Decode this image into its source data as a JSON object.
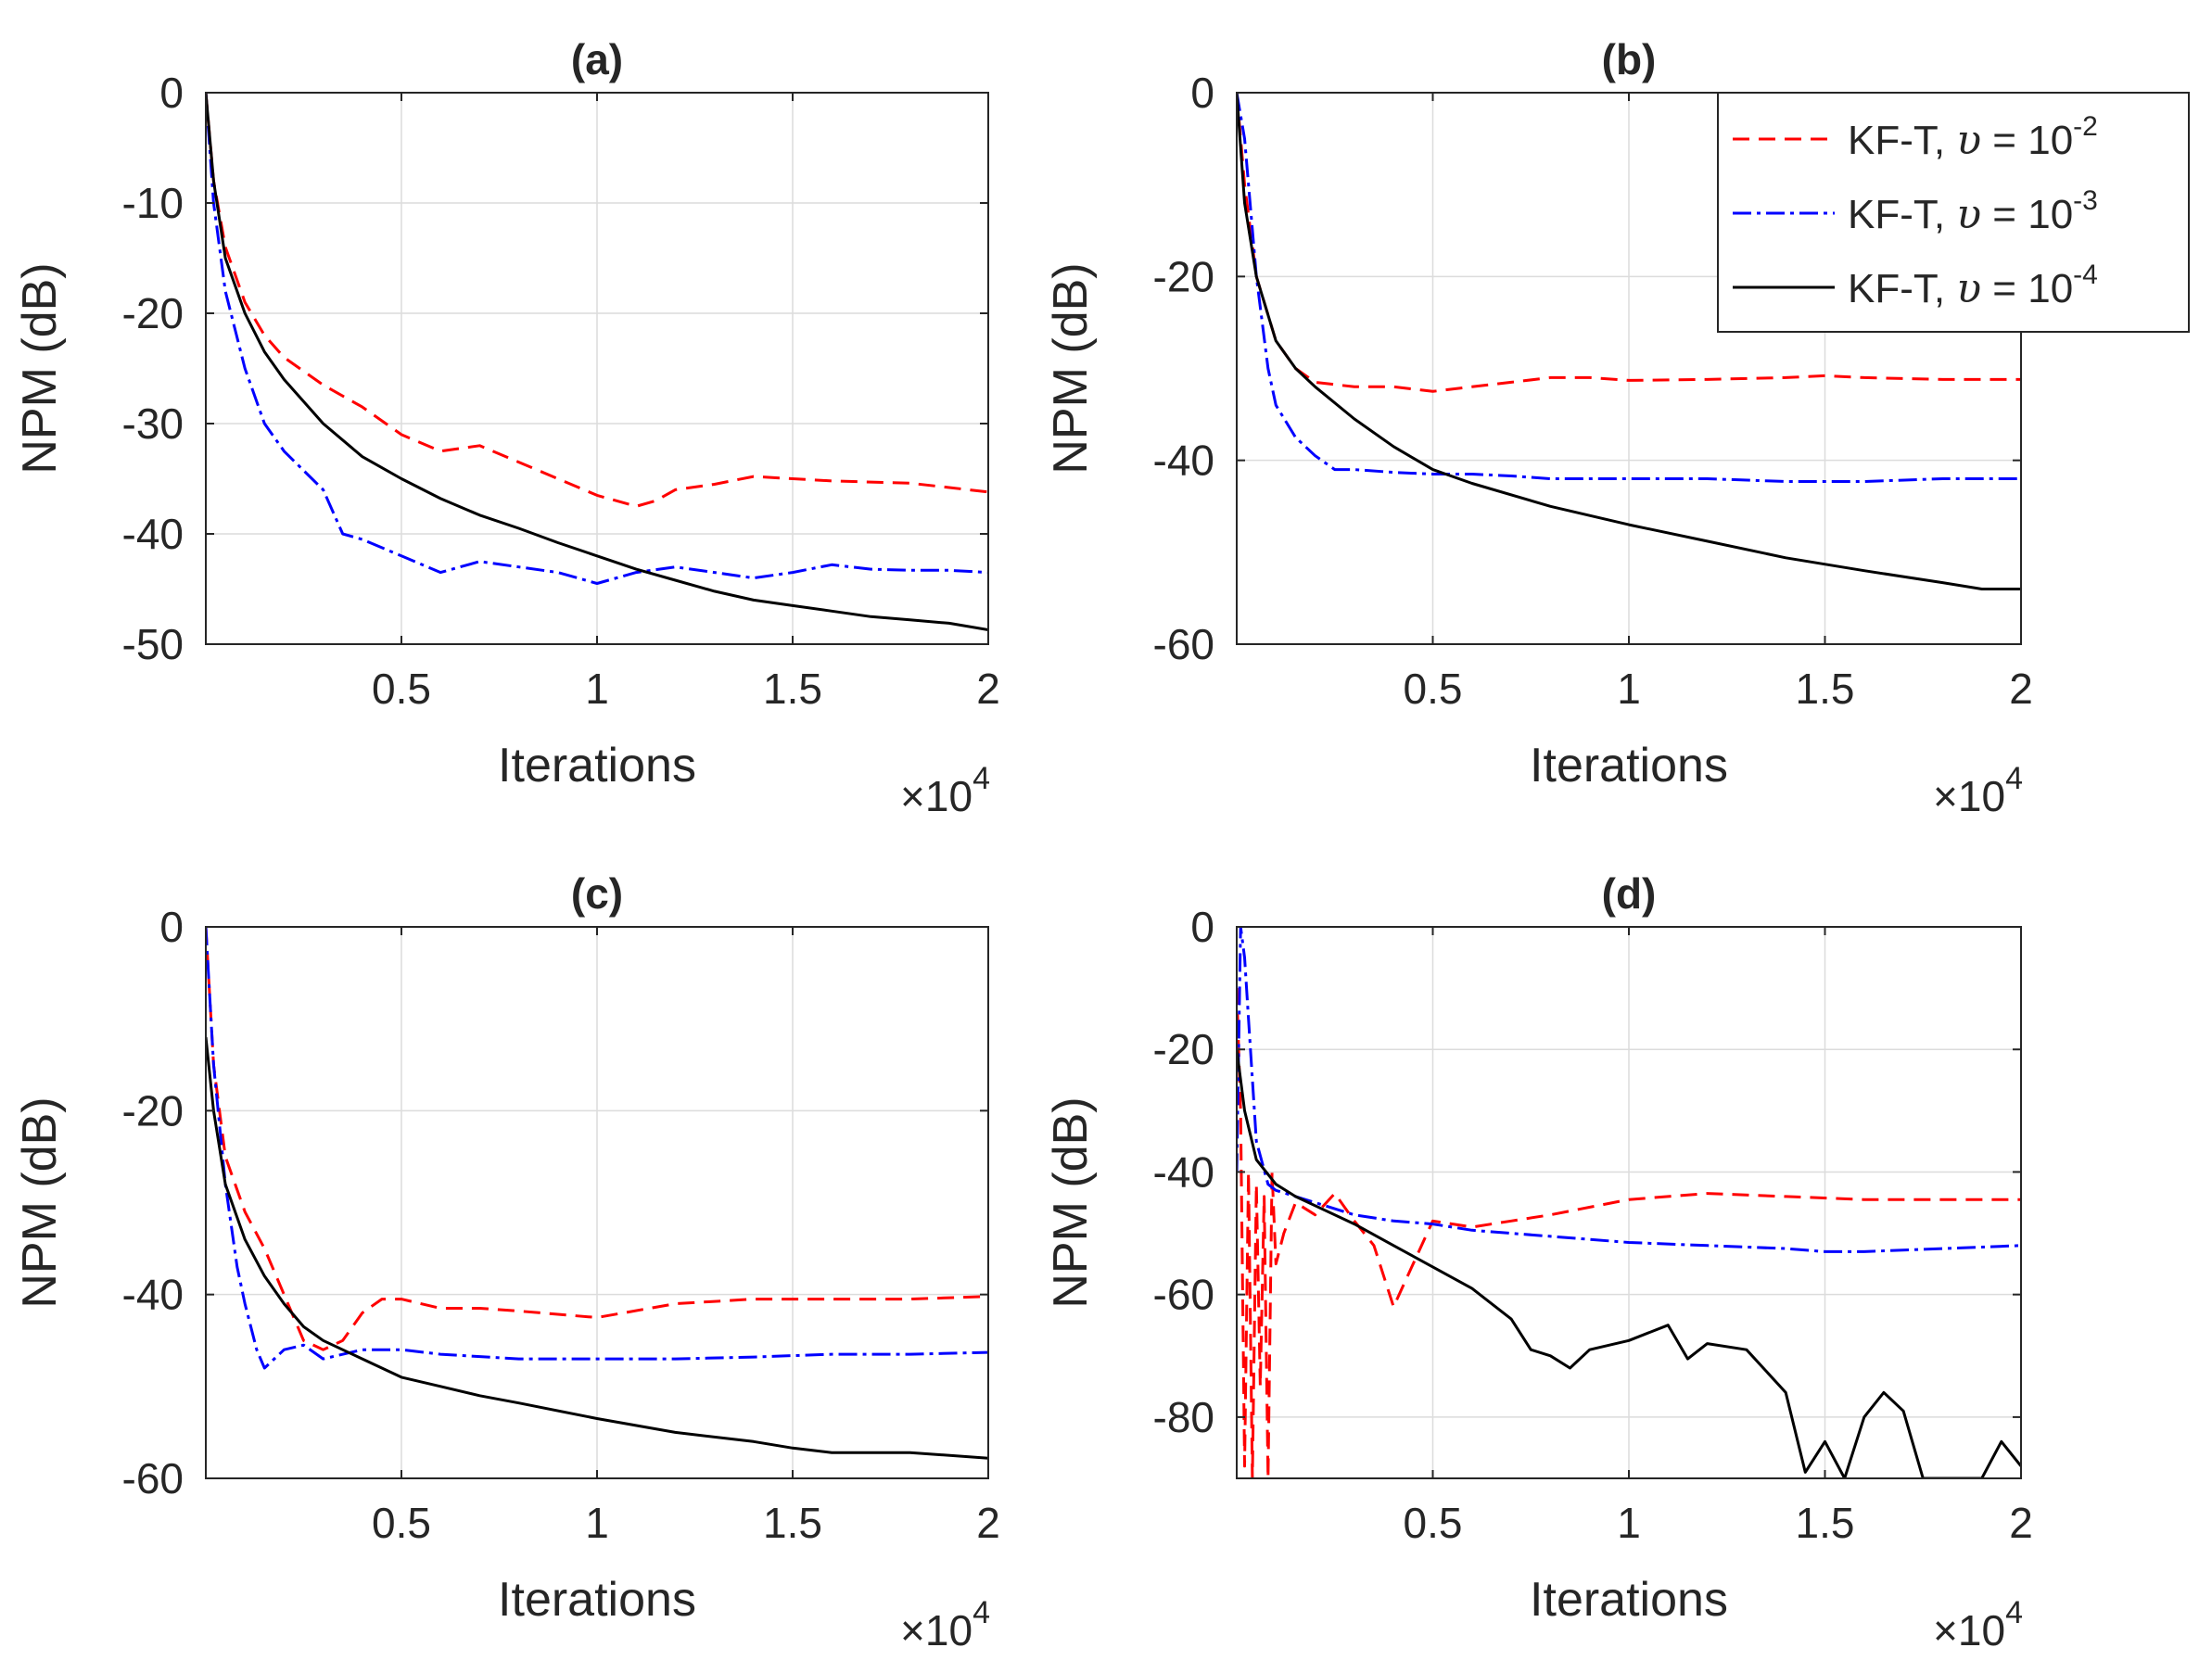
{
  "chart_data": [
    {
      "type": "line",
      "title": "(a)",
      "xlabel": "Iterations",
      "ylabel": "NPM (dB)",
      "x_multiplier": "×10",
      "x_multiplier_exp": "4",
      "xlim": [
        0,
        2
      ],
      "ylim": [
        -50,
        0
      ],
      "xticks": [
        0.5,
        1,
        1.5,
        2
      ],
      "xtick_labels": [
        "0.5",
        "1",
        "1.5",
        "2"
      ],
      "yticks": [
        0,
        -10,
        -20,
        -30,
        -40,
        -50
      ],
      "ytick_labels": [
        "0",
        "-10",
        "-20",
        "-30",
        "-40",
        "-50"
      ],
      "grid": true,
      "series": [
        {
          "name": "KF-T, υ = 10^-2",
          "color": "#ff0000",
          "style": "dashed",
          "x": [
            0,
            0.02,
            0.05,
            0.1,
            0.15,
            0.2,
            0.3,
            0.4,
            0.5,
            0.6,
            0.7,
            0.8,
            0.9,
            1.0,
            1.05,
            1.1,
            1.15,
            1.2,
            1.3,
            1.4,
            1.5,
            1.6,
            1.7,
            1.8,
            1.9,
            2.0
          ],
          "y": [
            0,
            -8,
            -14,
            -19,
            -22,
            -24,
            -26.5,
            -28.5,
            -31,
            -32.5,
            -32,
            -33.5,
            -35,
            -36.5,
            -37,
            -37.5,
            -37,
            -36,
            -35.5,
            -34.8,
            -35,
            -35.2,
            -35.3,
            -35.4,
            -35.8,
            -36.2
          ]
        },
        {
          "name": "KF-T, υ = 10^-3",
          "color": "#0000ff",
          "style": "dashdot",
          "x": [
            0,
            0.02,
            0.05,
            0.1,
            0.15,
            0.2,
            0.3,
            0.35,
            0.4,
            0.5,
            0.6,
            0.7,
            0.8,
            0.9,
            1.0,
            1.1,
            1.2,
            1.3,
            1.4,
            1.5,
            1.6,
            1.7,
            1.8,
            1.9,
            2.0
          ],
          "y": [
            0,
            -10,
            -18,
            -25,
            -30,
            -32.5,
            -36,
            -40,
            -40.5,
            -42,
            -43.5,
            -42.5,
            -43,
            -43.5,
            -44.5,
            -43.5,
            -43,
            -43.5,
            -44,
            -43.5,
            -42.8,
            -43.2,
            -43.3,
            -43.3,
            -43.5
          ]
        },
        {
          "name": "KF-T, υ = 10^-4",
          "color": "#000000",
          "style": "solid",
          "x": [
            0,
            0.02,
            0.05,
            0.1,
            0.15,
            0.2,
            0.3,
            0.4,
            0.5,
            0.6,
            0.7,
            0.8,
            0.9,
            1.0,
            1.1,
            1.2,
            1.3,
            1.4,
            1.5,
            1.6,
            1.7,
            1.8,
            1.9,
            2.0
          ],
          "y": [
            0,
            -8,
            -15,
            -20,
            -23.5,
            -26,
            -30,
            -33,
            -35,
            -36.8,
            -38.3,
            -39.5,
            -40.8,
            -42,
            -43.2,
            -44.2,
            -45.2,
            -46,
            -46.5,
            -47,
            -47.5,
            -47.8,
            -48.1,
            -48.7
          ]
        }
      ]
    },
    {
      "type": "line",
      "title": "(b)",
      "xlabel": "Iterations",
      "ylabel": "NPM (dB)",
      "x_multiplier": "×10",
      "x_multiplier_exp": "4",
      "xlim": [
        0,
        2
      ],
      "ylim": [
        -60,
        0
      ],
      "xticks": [
        0.5,
        1,
        1.5,
        2
      ],
      "xtick_labels": [
        "0.5",
        "1",
        "1.5",
        "2"
      ],
      "yticks": [
        0,
        -20,
        -40,
        -60
      ],
      "ytick_labels": [
        "0",
        "-20",
        "-40",
        "-60"
      ],
      "grid": true,
      "series": [
        {
          "name": "KF-T, υ = 10^-2",
          "color": "#ff0000",
          "style": "dashed",
          "x": [
            0,
            0.02,
            0.05,
            0.1,
            0.15,
            0.2,
            0.3,
            0.4,
            0.5,
            0.6,
            0.7,
            0.8,
            0.9,
            1.0,
            1.2,
            1.4,
            1.5,
            1.6,
            1.8,
            2.0
          ],
          "y": [
            0,
            -10,
            -20,
            -27,
            -30,
            -31.5,
            -32,
            -32,
            -32.5,
            -32,
            -31.5,
            -31,
            -31,
            -31.3,
            -31.2,
            -31,
            -30.8,
            -31,
            -31.2,
            -31.2
          ]
        },
        {
          "name": "KF-T, υ = 10^-3",
          "color": "#0000ff",
          "style": "dashdot",
          "x": [
            0,
            0.02,
            0.05,
            0.08,
            0.1,
            0.15,
            0.2,
            0.25,
            0.3,
            0.4,
            0.5,
            0.6,
            0.7,
            0.8,
            0.9,
            1.0,
            1.2,
            1.4,
            1.6,
            1.8,
            2.0
          ],
          "y": [
            0,
            -5,
            -20,
            -30,
            -34,
            -37.5,
            -39.5,
            -41,
            -41,
            -41.3,
            -41.5,
            -41.5,
            -41.7,
            -42,
            -42,
            -42,
            -42,
            -42.3,
            -42.3,
            -42,
            -42
          ]
        },
        {
          "name": "KF-T, υ = 10^-4",
          "color": "#000000",
          "style": "solid",
          "x": [
            0,
            0.02,
            0.05,
            0.1,
            0.15,
            0.2,
            0.3,
            0.4,
            0.5,
            0.6,
            0.8,
            1.0,
            1.2,
            1.4,
            1.6,
            1.8,
            1.9,
            2.0
          ],
          "y": [
            0,
            -12,
            -20,
            -27,
            -30,
            -32,
            -35.5,
            -38.5,
            -41,
            -42.5,
            -45,
            -47,
            -48.8,
            -50.6,
            -52,
            -53.3,
            -54,
            -54
          ]
        }
      ]
    },
    {
      "type": "line",
      "title": "(c)",
      "xlabel": "Iterations",
      "ylabel": "NPM (dB)",
      "x_multiplier": "×10",
      "x_multiplier_exp": "4",
      "xlim": [
        0,
        2
      ],
      "ylim": [
        -60,
        0
      ],
      "xticks": [
        0.5,
        1,
        1.5,
        2
      ],
      "xtick_labels": [
        "0.5",
        "1",
        "1.5",
        "2"
      ],
      "yticks": [
        0,
        -20,
        -40,
        -60
      ],
      "ytick_labels": [
        "0",
        "-20",
        "-40",
        "-60"
      ],
      "grid": true,
      "series": [
        {
          "name": "KF-T, υ = 10^-2",
          "color": "#ff0000",
          "style": "dashed",
          "x": [
            0,
            0.02,
            0.05,
            0.1,
            0.15,
            0.2,
            0.25,
            0.3,
            0.35,
            0.4,
            0.45,
            0.5,
            0.6,
            0.7,
            0.8,
            1.0,
            1.2,
            1.4,
            1.6,
            1.8,
            2.0
          ],
          "y": [
            0,
            -15,
            -25,
            -31,
            -35,
            -40,
            -45,
            -46,
            -45,
            -42,
            -40.5,
            -40.5,
            -41.5,
            -41.5,
            -41.8,
            -42.5,
            -41,
            -40.5,
            -40.5,
            -40.5,
            -40.2
          ]
        },
        {
          "name": "KF-T, υ = 10^-3",
          "color": "#0000ff",
          "style": "dashdot",
          "x": [
            0,
            0.02,
            0.05,
            0.08,
            0.1,
            0.13,
            0.15,
            0.2,
            0.25,
            0.3,
            0.4,
            0.5,
            0.6,
            0.8,
            1.0,
            1.2,
            1.4,
            1.6,
            1.8,
            2.0
          ],
          "y": [
            0,
            -15,
            -28,
            -37,
            -41,
            -46,
            -48,
            -46,
            -45.5,
            -47,
            -46,
            -46,
            -46.5,
            -47,
            -47,
            -47,
            -46.8,
            -46.5,
            -46.5,
            -46.3
          ]
        },
        {
          "name": "KF-T, υ = 10^-4",
          "color": "#000000",
          "style": "solid",
          "x": [
            0,
            0.02,
            0.05,
            0.1,
            0.15,
            0.2,
            0.25,
            0.3,
            0.4,
            0.5,
            0.6,
            0.7,
            0.8,
            1.0,
            1.2,
            1.4,
            1.5,
            1.6,
            1.8,
            2.0
          ],
          "y": [
            -12,
            -20,
            -28,
            -34,
            -38,
            -41,
            -43.5,
            -45,
            -47,
            -49,
            -50,
            -51,
            -51.8,
            -53.5,
            -55,
            -56,
            -56.7,
            -57.2,
            -57.2,
            -57.8
          ]
        }
      ]
    },
    {
      "type": "line",
      "title": "(d)",
      "xlabel": "Iterations",
      "ylabel": "NPM (dB)",
      "x_multiplier": "×10",
      "x_multiplier_exp": "4",
      "xlim": [
        0,
        2
      ],
      "ylim": [
        -90,
        0
      ],
      "xticks": [
        0.5,
        1,
        1.5,
        2
      ],
      "xtick_labels": [
        "0.5",
        "1",
        "1.5",
        "2"
      ],
      "yticks": [
        0,
        -20,
        -40,
        -60,
        -80
      ],
      "ytick_labels": [
        "0",
        "-20",
        "-40",
        "-60",
        "-80"
      ],
      "grid": true,
      "series": [
        {
          "name": "KF-T, υ = 10^-2",
          "color": "#ff0000",
          "style": "dashed",
          "x": [
            0,
            0.01,
            0.02,
            0.03,
            0.04,
            0.05,
            0.06,
            0.07,
            0.08,
            0.09,
            0.1,
            0.12,
            0.15,
            0.2,
            0.25,
            0.3,
            0.35,
            0.4,
            0.45,
            0.5,
            0.6,
            0.7,
            0.8,
            1.0,
            1.2,
            1.4,
            1.6,
            1.8,
            2.0
          ],
          "y": [
            -10,
            -30,
            -88,
            -40,
            -90,
            -42,
            -75,
            -44,
            -90,
            -40,
            -55,
            -50,
            -45,
            -47,
            -43.5,
            -48,
            -52,
            -62,
            -55,
            -48,
            -49,
            -48,
            -47,
            -44.5,
            -43.5,
            -44,
            -44.5,
            -44.5,
            -44.5
          ]
        },
        {
          "name": "KF-T, υ = 10^-3",
          "color": "#0000ff",
          "style": "dashdot",
          "x": [
            0,
            0.01,
            0.02,
            0.03,
            0.05,
            0.08,
            0.1,
            0.15,
            0.2,
            0.3,
            0.4,
            0.5,
            0.6,
            0.8,
            1.0,
            1.2,
            1.4,
            1.5,
            1.6,
            1.8,
            2.0
          ],
          "y": [
            -40,
            0,
            -5,
            -15,
            -35,
            -42,
            -43,
            -44,
            -45,
            -47,
            -48,
            -48.5,
            -49.5,
            -50.5,
            -51.5,
            -52,
            -52.5,
            -53,
            -53,
            -52.5,
            -52
          ]
        },
        {
          "name": "KF-T, υ = 10^-4",
          "color": "#000000",
          "style": "solid",
          "x": [
            0,
            0.02,
            0.05,
            0.1,
            0.15,
            0.2,
            0.3,
            0.4,
            0.5,
            0.6,
            0.7,
            0.75,
            0.8,
            0.85,
            0.9,
            1.0,
            1.1,
            1.15,
            1.2,
            1.3,
            1.4,
            1.45,
            1.5,
            1.55,
            1.6,
            1.65,
            1.7,
            1.75,
            1.8,
            1.85,
            1.9,
            1.95,
            2.0
          ],
          "y": [
            -20,
            -30,
            -38,
            -42,
            -44,
            -45.5,
            -48.5,
            -52,
            -55.5,
            -59,
            -64,
            -69,
            -70,
            -72,
            -69,
            -67.5,
            -65,
            -70.5,
            -68,
            -69,
            -76,
            -89,
            -84,
            -90,
            -80,
            -76,
            -79,
            -90,
            -90,
            -90,
            -90,
            -84,
            -88
          ]
        }
      ]
    }
  ],
  "legend": {
    "placement": "top-right of panel (b)",
    "entries": [
      {
        "prefix": "KF-T, ",
        "symbol": "υ",
        "rest": " = 10",
        "exp": "-2",
        "color": "#ff0000",
        "style": "dashed"
      },
      {
        "prefix": "KF-T, ",
        "symbol": "υ",
        "rest": " = 10",
        "exp": "-3",
        "color": "#0000ff",
        "style": "dashdot"
      },
      {
        "prefix": "KF-T, ",
        "symbol": "υ",
        "rest": " = 10",
        "exp": "-4",
        "color": "#000000",
        "style": "solid"
      }
    ]
  }
}
